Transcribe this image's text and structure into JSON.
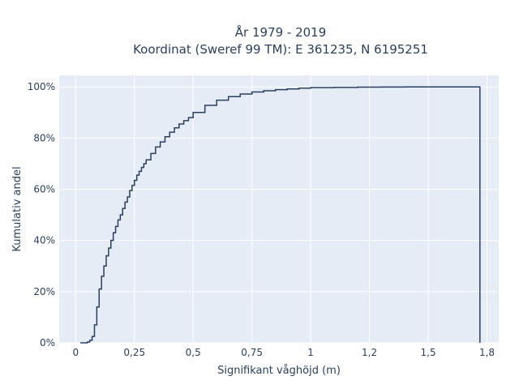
{
  "chart_data": {
    "type": "line",
    "subtype": "empirical-cdf-step",
    "title_line1": "År 1979 - 2019",
    "title_line2": "Koordinat (Sweref 99 TM): E 361235, N 6195251",
    "xlabel": "Signifikant våghöjd (m)",
    "ylabel": "Kumulativ andel",
    "xlim": [
      -0.07,
      1.8
    ],
    "ylim": [
      0,
      1.045
    ],
    "x_ticks": [
      0,
      0.25,
      0.5,
      0.75,
      1,
      1.25,
      1.5,
      1.75
    ],
    "x_tick_labels": [
      "0",
      "0,25",
      "0,5",
      "0,75",
      "1",
      "1,2",
      "1,5",
      "1,8"
    ],
    "y_ticks": [
      0,
      0.2,
      0.4,
      0.6,
      0.8,
      1.0
    ],
    "y_tick_labels": [
      "0%",
      "20%",
      "40%",
      "60%",
      "80%",
      "100%"
    ],
    "grid": true,
    "background_color": "#e5ecf6",
    "grid_color": "#ffffff",
    "line_color": "#2a3f5f",
    "series": [
      {
        "x": [
          0.02,
          0.05,
          0.06,
          0.07,
          0.08,
          0.09,
          0.1,
          0.11,
          0.12,
          0.13,
          0.14,
          0.15,
          0.16,
          0.17,
          0.18,
          0.19,
          0.2,
          0.21,
          0.22,
          0.23,
          0.24,
          0.25,
          0.26,
          0.27,
          0.28,
          0.29,
          0.3,
          0.32,
          0.34,
          0.36,
          0.38,
          0.4,
          0.42,
          0.44,
          0.46,
          0.48,
          0.5,
          0.55,
          0.6,
          0.65,
          0.7,
          0.75,
          0.8,
          0.85,
          0.9,
          0.95,
          1.0,
          1.1,
          1.2,
          1.3,
          1.4,
          1.5,
          1.6,
          1.7,
          1.72
        ],
        "y": [
          0.0,
          0.003,
          0.01,
          0.025,
          0.07,
          0.14,
          0.21,
          0.26,
          0.3,
          0.34,
          0.37,
          0.4,
          0.43,
          0.455,
          0.48,
          0.5,
          0.525,
          0.55,
          0.57,
          0.595,
          0.615,
          0.635,
          0.655,
          0.67,
          0.685,
          0.7,
          0.715,
          0.74,
          0.765,
          0.785,
          0.805,
          0.823,
          0.84,
          0.855,
          0.868,
          0.88,
          0.9,
          0.928,
          0.948,
          0.962,
          0.972,
          0.98,
          0.985,
          0.989,
          0.992,
          0.995,
          0.997,
          0.998,
          0.999,
          0.9995,
          1.0,
          1.0,
          1.0,
          1.0,
          1.0
        ]
      }
    ]
  }
}
